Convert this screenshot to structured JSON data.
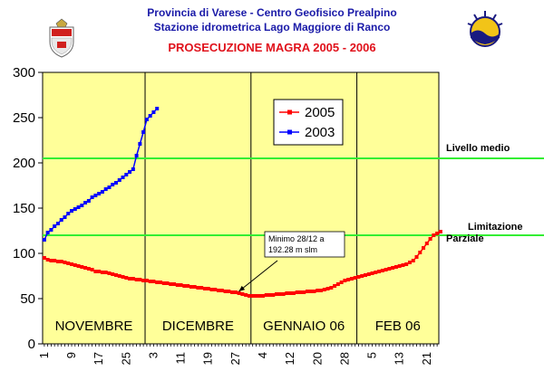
{
  "header": {
    "line1": "Provincia di Varese - Centro Geofisico Prealpino",
    "line2": "Stazione idrometrica Lago Maggiore di Ranco",
    "line3": "PROSECUZIONE MAGRA 2005 - 2006",
    "line1_color": "#1a1aa8",
    "line3_color": "#e0111b"
  },
  "icons": {
    "left": "province-crest-icon",
    "right": "geophysical-center-logo-icon"
  },
  "colors": {
    "plot_background": "#ffff99",
    "series_2005": "#ff0000",
    "series_2003": "#0000ff",
    "reference_lines": "#33ee33"
  },
  "chart_data": {
    "type": "line",
    "ylim": [
      0,
      300
    ],
    "yticks": [
      0,
      50,
      100,
      150,
      200,
      250,
      300
    ],
    "xticks": [
      "1",
      "9",
      "17",
      "25",
      "3",
      "11",
      "19",
      "27",
      "4",
      "12",
      "20",
      "28",
      "5",
      "13",
      "21"
    ],
    "grid": false,
    "legend_position": "top-right",
    "months": [
      {
        "label": "NOVEMBRE",
        "days": 30
      },
      {
        "label": "DICEMBRE",
        "days": 31
      },
      {
        "label": "GENNAIO 06",
        "days": 31
      },
      {
        "label": "FEB 06",
        "days": 24
      }
    ],
    "reference_lines": [
      {
        "label": "Livello medio",
        "y": 205
      },
      {
        "label": "Limitazione Parziale",
        "y": 120
      }
    ],
    "annotation": {
      "lines": [
        "Minimo 28/12 a",
        "192.28 m slm"
      ],
      "target_day_index": 58,
      "target_value": 52
    },
    "series": [
      {
        "name": "2005",
        "color": "#ff0000",
        "marker": "square",
        "values": [
          95,
          93,
          92,
          92,
          91,
          91,
          90,
          89,
          88,
          87,
          86,
          85,
          84,
          83,
          82,
          80,
          80,
          79,
          79,
          78,
          77,
          76,
          75,
          74,
          73,
          72,
          72,
          71,
          71,
          70,
          70,
          69,
          69,
          68,
          68,
          67,
          67,
          66,
          66,
          65,
          65,
          64,
          64,
          63,
          63,
          62,
          62,
          61,
          61,
          60,
          60,
          59,
          59,
          58,
          58,
          57,
          57,
          56,
          55,
          54,
          53,
          53,
          53,
          53,
          53,
          54,
          54,
          54,
          55,
          55,
          55,
          56,
          56,
          56,
          57,
          57,
          57,
          58,
          58,
          58,
          59,
          59,
          60,
          61,
          62,
          64,
          66,
          68,
          70,
          71,
          72,
          73,
          74,
          75,
          76,
          77,
          78,
          79,
          80,
          81,
          82,
          83,
          84,
          85,
          86,
          87,
          88,
          90,
          92,
          96,
          101,
          106,
          111,
          116,
          120,
          122,
          124
        ]
      },
      {
        "name": "2003",
        "color": "#0000ff",
        "marker": "square",
        "values": [
          115,
          123,
          126,
          130,
          133,
          137,
          140,
          144,
          147,
          149,
          151,
          153,
          156,
          158,
          162,
          164,
          166,
          168,
          171,
          173,
          176,
          178,
          181,
          184,
          187,
          190,
          193,
          208,
          221,
          234,
          248,
          252,
          256,
          260
        ]
      }
    ]
  }
}
